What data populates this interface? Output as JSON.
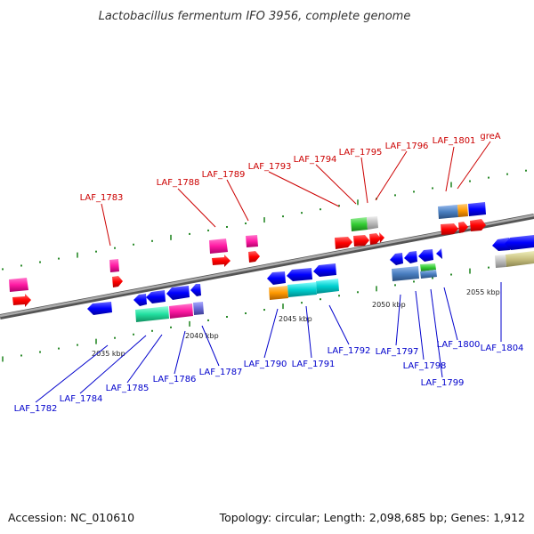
{
  "title": "Lactobacillus fermentum IFO 3956, complete genome",
  "footer": {
    "accession": "Accession: NC_010610",
    "summary": "Topology: circular; Length: 2,098,685 bp; Genes: 1,912"
  },
  "scale_labels": [
    "2035 kbp",
    "2040 kbp",
    "2045 kbp",
    "2050 kbp",
    "2055 kbp"
  ],
  "gene_labels_top": [
    "LAF_1783",
    "LAF_1788",
    "LAF_1789",
    "LAF_1793",
    "LAF_1794",
    "LAF_1795",
    "LAF_1796",
    "LAF_1801",
    "greA"
  ],
  "gene_labels_bottom": [
    "LAF_1782",
    "LAF_1784",
    "LAF_1785",
    "LAF_1786",
    "LAF_1787",
    "LAF_1790",
    "LAF_1791",
    "LAF_1792",
    "LAF_1797",
    "LAF_1798",
    "LAF_1799",
    "LAF_1800",
    "LAF_1804"
  ],
  "colors": {
    "label_top": "#cc0000",
    "label_bottom": "#0000cc",
    "forward_arrow": "#ff0000",
    "reverse_arrow": "#0000ff",
    "magenta": "#ff1aa3",
    "cyan": "#00d0d0",
    "mint": "#22e0a0",
    "green": "#33cc33",
    "orange": "#ff9900",
    "steel": "#4a7fc0",
    "olive": "#c8c080",
    "grey": "#bbbbbb",
    "tick_green": "#2a8a2a",
    "backbone": "#8a8a8a"
  }
}
